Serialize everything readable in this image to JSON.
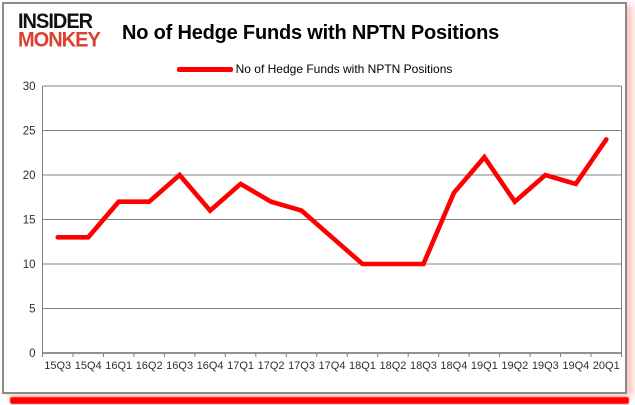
{
  "header": {
    "logo_line1": "INSIDER",
    "logo_line2": "MONKEY",
    "title": "No of Hedge Funds with NPTN Positions"
  },
  "legend": {
    "label": "No of Hedge Funds with NPTN Positions"
  },
  "colors": {
    "line": "#ff0000",
    "logo_red": "#dd4030",
    "grid": "#808080",
    "axis": "#6f6f6f",
    "tick_label": "#2f2f2f",
    "card_border": "#8a8a8a"
  },
  "chart_data": {
    "type": "line",
    "title": "No of Hedge Funds with NPTN Positions",
    "categories": [
      "15Q3",
      "15Q4",
      "16Q1",
      "16Q2",
      "16Q3",
      "16Q4",
      "17Q1",
      "17Q2",
      "17Q3",
      "17Q4",
      "18Q1",
      "18Q2",
      "18Q3",
      "18Q4",
      "19Q1",
      "19Q2",
      "19Q3",
      "19Q4",
      "20Q1"
    ],
    "series": [
      {
        "name": "No of Hedge Funds with NPTN Positions",
        "values": [
          13,
          13,
          17,
          17,
          20,
          16,
          19,
          17,
          16,
          13,
          10,
          10,
          10,
          18,
          22,
          17,
          20,
          19,
          24
        ]
      }
    ],
    "xlabel": "",
    "ylabel": "",
    "ylim": [
      0,
      30
    ],
    "yticks": [
      0,
      5,
      10,
      15,
      20,
      25,
      30
    ],
    "grid": true,
    "legend_position": "top-center"
  }
}
